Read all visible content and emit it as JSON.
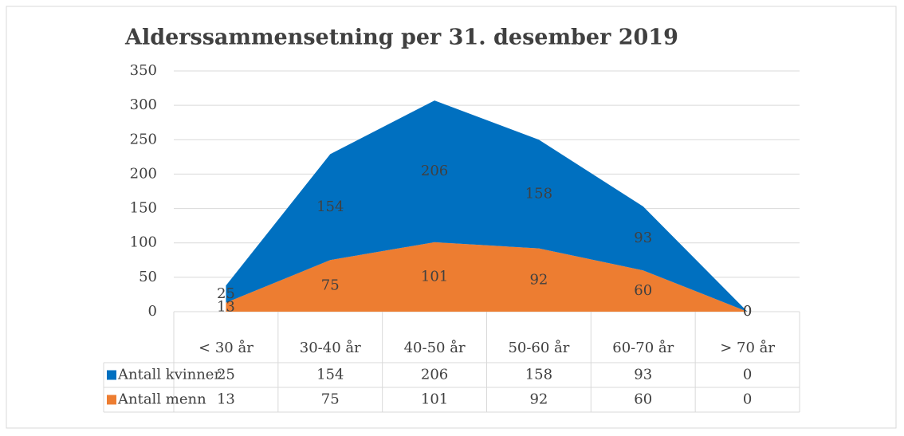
{
  "chart_data": {
    "type": "stacked_area",
    "title": "Alderssammensetning per 31. desember 2019",
    "categories": [
      "< 30 år",
      "30-40 år",
      "40-50 år",
      "50-60 år",
      "60-70 år",
      "> 70 år"
    ],
    "series": [
      {
        "name": "Antall kvinner",
        "color": "#0070c0",
        "values": [
          25,
          154,
          206,
          158,
          93,
          0
        ]
      },
      {
        "name": "Antall menn",
        "color": "#ed7d31",
        "values": [
          13,
          75,
          101,
          92,
          60,
          0
        ]
      }
    ],
    "stack_order": [
      1,
      0
    ],
    "ylim": [
      0,
      350
    ],
    "yticks": [
      0,
      50,
      100,
      150,
      200,
      250,
      300,
      350
    ],
    "grid": true
  }
}
